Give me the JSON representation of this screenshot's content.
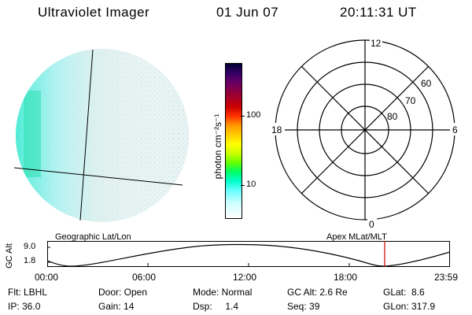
{
  "header": {
    "instrument": "Ultraviolet Imager",
    "date": "01 Jun 07",
    "time": "20:11:31 UT"
  },
  "colorbar": {
    "label": "photon cm⁻²s⁻¹",
    "ticks": [
      "100",
      "10"
    ],
    "scale": "log",
    "colors": [
      "#000033",
      "#330066",
      "#660066",
      "#990033",
      "#cc0000",
      "#ff3300",
      "#ff9900",
      "#ffcc00",
      "#ffff00",
      "#ccff00",
      "#66ff00",
      "#00ff66",
      "#00ffcc",
      "#66ffff",
      "#ccffff",
      "#ffffff"
    ]
  },
  "polar_plot": {
    "mlt_labels": {
      "top": "12",
      "left": "18",
      "right": "6",
      "bottom": "0"
    },
    "lat_labels": [
      "60",
      "70",
      "80"
    ]
  },
  "timeline": {
    "ylabel": "GC Alt",
    "y_ticks": [
      "9.0",
      "1.8"
    ],
    "left_caption": "Geographic Lat/Lon",
    "right_caption": "Apex MLat/MLT",
    "x_ticks": [
      "00:00",
      "06:00",
      "12:00",
      "18:00",
      "23:59"
    ],
    "marker_color": "#cc0000"
  },
  "info": {
    "row1": [
      "Flt: LBHL",
      "Door: Open",
      "Mode: Normal",
      "GC Alt: 2.6 Re",
      "GLat:  8.6"
    ],
    "row2": [
      "IP: 36.0",
      "Gain: 14",
      "Dsp:     1.4",
      "Seq: 39",
      "GLon: 317.9"
    ]
  }
}
